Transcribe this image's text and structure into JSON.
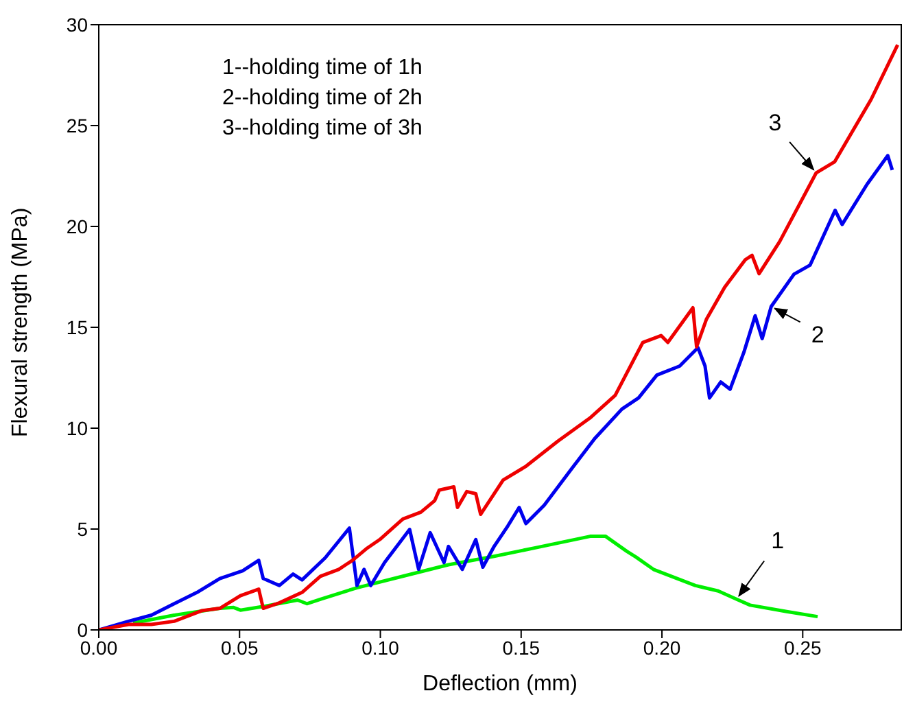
{
  "chart_data": {
    "type": "line",
    "xlabel": "Deflection (mm)",
    "ylabel": "Flexural strength (MPa)",
    "xlim": [
      0,
      0.285
    ],
    "xticks": [
      {
        "value": 0,
        "label": "0.00"
      },
      {
        "value": 0.05,
        "label": "0.05"
      },
      {
        "value": 0.1,
        "label": "0.10"
      },
      {
        "value": 0.15,
        "label": "0.15"
      },
      {
        "value": 0.2,
        "label": "0.20"
      },
      {
        "value": 0.25,
        "label": "0.25"
      }
    ],
    "ylim": [
      0,
      30
    ],
    "yticks": [
      0,
      5,
      10,
      15,
      20,
      25,
      30
    ],
    "grid": false,
    "legend": false,
    "marker": "none",
    "line_style": "solid",
    "annotations": [
      "1--holding time of 1h",
      "2--holding time of 2h",
      "3--holding time of 3h"
    ],
    "series": [
      {
        "name": "1",
        "color": "#00ee00",
        "x": [
          0.0122,
          0.0268,
          0.043,
          0.0479,
          0.0503,
          0.0593,
          0.0706,
          0.0739,
          0.0787,
          0.0917,
          0.108,
          0.1242,
          0.1404,
          0.155,
          0.1745,
          0.18,
          0.1875,
          0.1908,
          0.197,
          0.2119,
          0.22,
          0.2265,
          0.2313,
          0.2443,
          0.2553
        ],
        "values": [
          0.34,
          0.73,
          1.07,
          1.11,
          0.98,
          1.18,
          1.48,
          1.3,
          1.52,
          2.09,
          2.66,
          3.23,
          3.65,
          4.07,
          4.64,
          4.64,
          3.9,
          3.61,
          3.0,
          2.2,
          1.93,
          1.52,
          1.23,
          0.91,
          0.66
        ]
      },
      {
        "name": "2",
        "color": "#0000ee",
        "x": [
          0,
          0.0106,
          0.0187,
          0.0268,
          0.0349,
          0.043,
          0.0511,
          0.0568,
          0.0584,
          0.0641,
          0.069,
          0.0722,
          0.0804,
          0.089,
          0.0917,
          0.0942,
          0.0966,
          0.1015,
          0.1104,
          0.1136,
          0.1177,
          0.1226,
          0.1242,
          0.1291,
          0.1339,
          0.1364,
          0.1404,
          0.1453,
          0.1493,
          0.1517,
          0.1582,
          0.168,
          0.1761,
          0.1858,
          0.1917,
          0.1982,
          0.2063,
          0.2128,
          0.2153,
          0.2169,
          0.2209,
          0.2242,
          0.2291,
          0.2331,
          0.2356,
          0.2388,
          0.2469,
          0.2526,
          0.2615,
          0.264,
          0.2729,
          0.2802,
          0.2818
        ],
        "values": [
          0,
          0.43,
          0.73,
          1.3,
          1.86,
          2.55,
          2.93,
          3.45,
          2.55,
          2.2,
          2.77,
          2.48,
          3.57,
          5.05,
          2.2,
          3.0,
          2.2,
          3.34,
          4.98,
          3.0,
          4.82,
          3.34,
          4.14,
          3.0,
          4.48,
          3.11,
          4.14,
          5.16,
          6.07,
          5.27,
          6.18,
          8.0,
          9.48,
          10.95,
          11.5,
          12.63,
          13.08,
          13.99,
          13.08,
          11.5,
          12.29,
          11.93,
          13.76,
          15.57,
          14.44,
          16.03,
          17.63,
          18.08,
          20.8,
          20.1,
          22.1,
          23.51,
          22.8
        ]
      },
      {
        "name": "3",
        "color": "#ee0000",
        "x": [
          0,
          0.0106,
          0.0187,
          0.0268,
          0.0365,
          0.043,
          0.0503,
          0.0568,
          0.0584,
          0.0641,
          0.0722,
          0.0787,
          0.0852,
          0.0901,
          0.095,
          0.0998,
          0.108,
          0.1144,
          0.1193,
          0.1209,
          0.1261,
          0.1274,
          0.1307,
          0.1339,
          0.1356,
          0.1388,
          0.1436,
          0.1517,
          0.1631,
          0.1744,
          0.1834,
          0.1932,
          0.1997,
          0.2021,
          0.211,
          0.2123,
          0.2158,
          0.2223,
          0.2296,
          0.232,
          0.2345,
          0.2418,
          0.2548,
          0.2613,
          0.2743,
          0.2837
        ],
        "values": [
          0,
          0.27,
          0.27,
          0.43,
          0.95,
          1.07,
          1.7,
          2.02,
          1.07,
          1.34,
          1.86,
          2.66,
          3.0,
          3.45,
          4.02,
          4.48,
          5.5,
          5.84,
          6.41,
          6.93,
          7.09,
          6.07,
          6.86,
          6.75,
          5.73,
          6.41,
          7.43,
          8.11,
          9.36,
          10.5,
          11.63,
          14.25,
          14.59,
          14.25,
          15.97,
          14.03,
          15.4,
          16.99,
          18.35,
          18.57,
          17.66,
          19.25,
          22.66,
          23.2,
          26.3,
          29.0
        ]
      }
    ]
  }
}
